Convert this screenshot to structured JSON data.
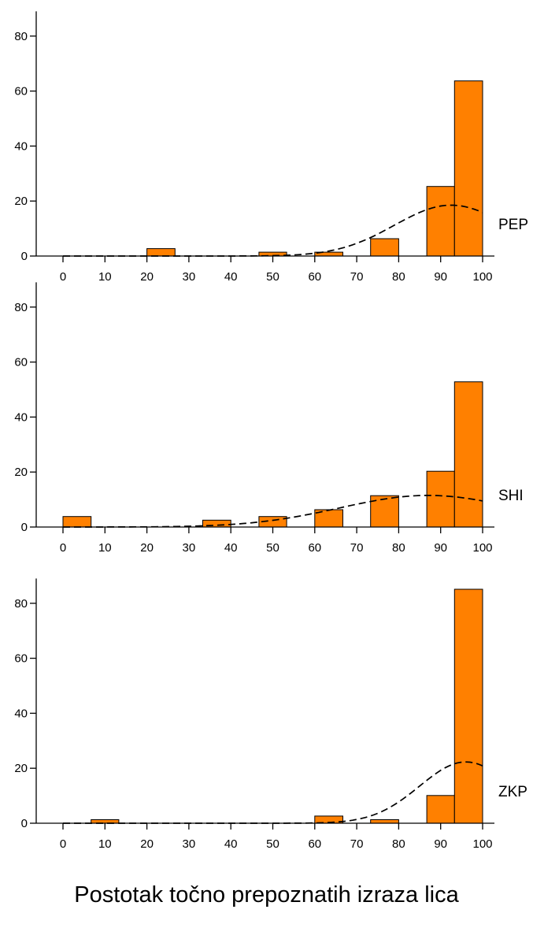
{
  "chart_data": [
    {
      "type": "bar",
      "panel_label": "PEP",
      "x_ticks": [
        "0",
        "10",
        "20",
        "30",
        "40",
        "50",
        "60",
        "70",
        "80",
        "90",
        "100"
      ],
      "y_ticks": [
        "0",
        "20",
        "40",
        "60",
        "80"
      ],
      "xlim": [
        -8,
        104
      ],
      "ylim": [
        0,
        89
      ],
      "bins": [
        {
          "x0": 20,
          "x1": 26.7,
          "value": 2.7
        },
        {
          "x0": 46.7,
          "x1": 53.3,
          "value": 1.4
        },
        {
          "x0": 60,
          "x1": 66.7,
          "value": 1.4
        },
        {
          "x0": 73.3,
          "x1": 80,
          "value": 6.3
        },
        {
          "x0": 86.7,
          "x1": 93.3,
          "value": 25.3
        },
        {
          "x0": 93.3,
          "x1": 100,
          "value": 63.7
        }
      ],
      "fit_curve": {
        "style": "dashed",
        "mean": 92.5,
        "sd": 13.5,
        "peak": 18.5,
        "x_range": [
          0,
          100
        ]
      }
    },
    {
      "type": "bar",
      "panel_label": "SHI",
      "x_ticks": [
        "0",
        "10",
        "20",
        "30",
        "40",
        "50",
        "60",
        "70",
        "80",
        "90",
        "100"
      ],
      "y_ticks": [
        "0",
        "20",
        "40",
        "60",
        "80"
      ],
      "xlim": [
        -8,
        104
      ],
      "ylim": [
        0,
        89
      ],
      "bins": [
        {
          "x0": 0,
          "x1": 6.7,
          "value": 3.8
        },
        {
          "x0": 33.3,
          "x1": 40,
          "value": 2.5
        },
        {
          "x0": 46.7,
          "x1": 53.3,
          "value": 3.8
        },
        {
          "x0": 60,
          "x1": 66.7,
          "value": 6.3
        },
        {
          "x0": 73.3,
          "x1": 80,
          "value": 11.4
        },
        {
          "x0": 86.7,
          "x1": 93.3,
          "value": 20.3
        },
        {
          "x0": 93.3,
          "x1": 100,
          "value": 52.8
        }
      ],
      "fit_curve": {
        "style": "dashed",
        "mean": 87,
        "sd": 21,
        "peak": 11.5,
        "x_range": [
          0,
          100
        ]
      }
    },
    {
      "type": "bar",
      "panel_label": "ZKP",
      "x_ticks": [
        "0",
        "10",
        "20",
        "30",
        "40",
        "50",
        "60",
        "70",
        "80",
        "90",
        "100"
      ],
      "y_ticks": [
        "0",
        "20",
        "40",
        "60",
        "80"
      ],
      "xlim": [
        -8,
        104
      ],
      "ylim": [
        0,
        89
      ],
      "bins": [
        {
          "x0": 6.7,
          "x1": 13.3,
          "value": 1.3
        },
        {
          "x0": 60,
          "x1": 66.7,
          "value": 2.6
        },
        {
          "x0": 73.3,
          "x1": 80,
          "value": 1.3
        },
        {
          "x0": 86.7,
          "x1": 93.3,
          "value": 10.1
        },
        {
          "x0": 93.3,
          "x1": 100,
          "value": 85.1
        }
      ],
      "fit_curve": {
        "style": "dashed",
        "mean": 96,
        "sd": 11,
        "peak": 22.3,
        "x_range": [
          0,
          100
        ]
      }
    }
  ],
  "xlabel": "Postotak točno prepoznatih izraza lica",
  "colors": {
    "bar": "#ff8000",
    "bar_edge": "#000000",
    "axis": "#000000"
  }
}
